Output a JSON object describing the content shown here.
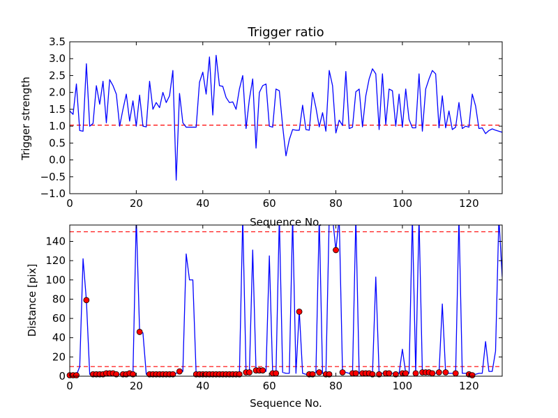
{
  "colors": {
    "line": "#0000ff",
    "reference": "#ff0000",
    "marker_fill": "#ff0000",
    "marker_edge": "#000000",
    "axes": "#000000",
    "background": "#ffffff"
  },
  "chart_data": [
    {
      "type": "line",
      "title": "Trigger ratio",
      "xlabel": "Sequence No.",
      "ylabel": "Trigger strength",
      "xlim": [
        0,
        130
      ],
      "ylim": [
        -1.0,
        3.5
      ],
      "xticks": [
        "0",
        "20",
        "40",
        "60",
        "80",
        "100",
        "120"
      ],
      "yticks": [
        "−1.0",
        "−0.5",
        "0.0",
        "0.5",
        "1.0",
        "1.5",
        "2.0",
        "2.5",
        "3.0",
        "3.5"
      ],
      "grid": false,
      "reference_lines": [
        {
          "y": 1.03,
          "style": "dashed",
          "color": "red"
        }
      ],
      "series": [
        {
          "color": "blue",
          "values": [
            1.45,
            1.35,
            2.25,
            0.87,
            0.85,
            2.85,
            1.0,
            1.08,
            2.2,
            1.65,
            2.33,
            1.1,
            2.38,
            2.2,
            1.95,
            1.0,
            1.5,
            1.95,
            1.15,
            1.75,
            1.0,
            1.92,
            1.0,
            0.98,
            2.33,
            1.5,
            1.7,
            1.55,
            2.0,
            1.7,
            1.9,
            2.65,
            -0.6,
            1.97,
            1.1,
            0.97,
            0.97,
            0.97,
            0.97,
            2.3,
            2.6,
            1.95,
            3.05,
            1.33,
            3.1,
            2.2,
            2.18,
            1.85,
            1.7,
            1.72,
            1.5,
            2.1,
            2.5,
            0.93,
            1.8,
            2.4,
            0.35,
            2.0,
            2.2,
            2.25,
            1.0,
            0.97,
            2.1,
            2.05,
            1.0,
            0.12,
            0.6,
            0.9,
            0.88,
            0.88,
            1.62,
            0.9,
            0.88,
            2.0,
            1.55,
            0.98,
            1.4,
            0.85,
            2.65,
            2.2,
            0.8,
            1.18,
            1.02,
            2.62,
            0.93,
            0.97,
            2.02,
            2.1,
            0.98,
            1.9,
            2.4,
            2.7,
            2.55,
            0.9,
            2.55,
            1.05,
            2.1,
            2.05,
            1.0,
            1.95,
            0.97,
            2.1,
            1.2,
            0.95,
            0.95,
            2.55,
            0.85,
            2.1,
            2.4,
            2.65,
            2.55,
            0.95,
            1.9,
            0.95,
            1.45,
            0.9,
            0.97,
            1.7,
            0.93,
            1.0,
            0.97,
            1.95,
            1.6,
            0.93,
            0.95,
            0.78,
            0.87,
            0.92,
            0.88,
            0.85,
            0.82
          ]
        }
      ]
    },
    {
      "type": "line",
      "title": "",
      "xlabel": "Sequence No.",
      "ylabel": "Distance [pix]",
      "xlim": [
        0,
        130
      ],
      "ylim": [
        0,
        157
      ],
      "xticks": [
        "0",
        "20",
        "40",
        "60",
        "80",
        "100",
        "120"
      ],
      "yticks": [
        "0",
        "20",
        "40",
        "60",
        "80",
        "100",
        "120",
        "140"
      ],
      "grid": false,
      "reference_lines": [
        {
          "y": 150,
          "style": "dashed",
          "color": "red"
        },
        {
          "y": 10,
          "style": "dashed",
          "color": "red"
        }
      ],
      "series": [
        {
          "color": "blue",
          "values": [
            1,
            1,
            1,
            10,
            122,
            79,
            2,
            2,
            2,
            2,
            3,
            3,
            3,
            2,
            2,
            2,
            3,
            2,
            2,
            2,
            165,
            46,
            45,
            2,
            2,
            2,
            2,
            2,
            2,
            2,
            2,
            2,
            3,
            5,
            5,
            127,
            100,
            100,
            2,
            2,
            2,
            2,
            2,
            2,
            2,
            2,
            2,
            2,
            2,
            2,
            2,
            2,
            165,
            4,
            4,
            131,
            6,
            6,
            6,
            5,
            125,
            3,
            3,
            165,
            4,
            3,
            3,
            165,
            3,
            68,
            3,
            2,
            2,
            3,
            4,
            165,
            3,
            2,
            165,
            165,
            131,
            165,
            4,
            4,
            3,
            2,
            165,
            3,
            3,
            3,
            3,
            2,
            103,
            3,
            3,
            3,
            3,
            3,
            3,
            3,
            28,
            3,
            3,
            165,
            3,
            165,
            4,
            4,
            4,
            3,
            3,
            3,
            75,
            3,
            3,
            3,
            3,
            165,
            3,
            3,
            3,
            2,
            2,
            3,
            3,
            36,
            5,
            5,
            26,
            165,
            103
          ]
        }
      ],
      "markers": {
        "x": [
          0,
          1,
          2,
          5,
          7,
          8,
          9,
          10,
          11,
          12,
          13,
          14,
          16,
          17,
          18,
          19,
          21,
          24,
          25,
          26,
          27,
          28,
          29,
          30,
          31,
          33,
          38,
          39,
          40,
          41,
          42,
          43,
          44,
          45,
          46,
          47,
          48,
          49,
          50,
          51,
          53,
          54,
          56,
          57,
          58,
          61,
          62,
          69,
          72,
          73,
          75,
          77,
          78,
          80,
          82,
          85,
          86,
          88,
          89,
          90,
          91,
          93,
          95,
          96,
          98,
          100,
          101,
          104,
          106,
          107,
          108,
          109,
          111,
          113,
          116,
          120,
          121
        ],
        "y": [
          1,
          1,
          1,
          79,
          2,
          2,
          2,
          2,
          3,
          3,
          3,
          2,
          2,
          2,
          3,
          2,
          46,
          2,
          2,
          2,
          2,
          2,
          2,
          2,
          2,
          5,
          2,
          2,
          2,
          2,
          2,
          2,
          2,
          2,
          2,
          2,
          2,
          2,
          2,
          2,
          4,
          4,
          6,
          6,
          6,
          3,
          3,
          67,
          2,
          2,
          4,
          2,
          2,
          131,
          4,
          3,
          3,
          3,
          3,
          3,
          2,
          2,
          3,
          3,
          2,
          3,
          3,
          3,
          4,
          4,
          4,
          3,
          4,
          4,
          3,
          2,
          1
        ]
      }
    }
  ]
}
